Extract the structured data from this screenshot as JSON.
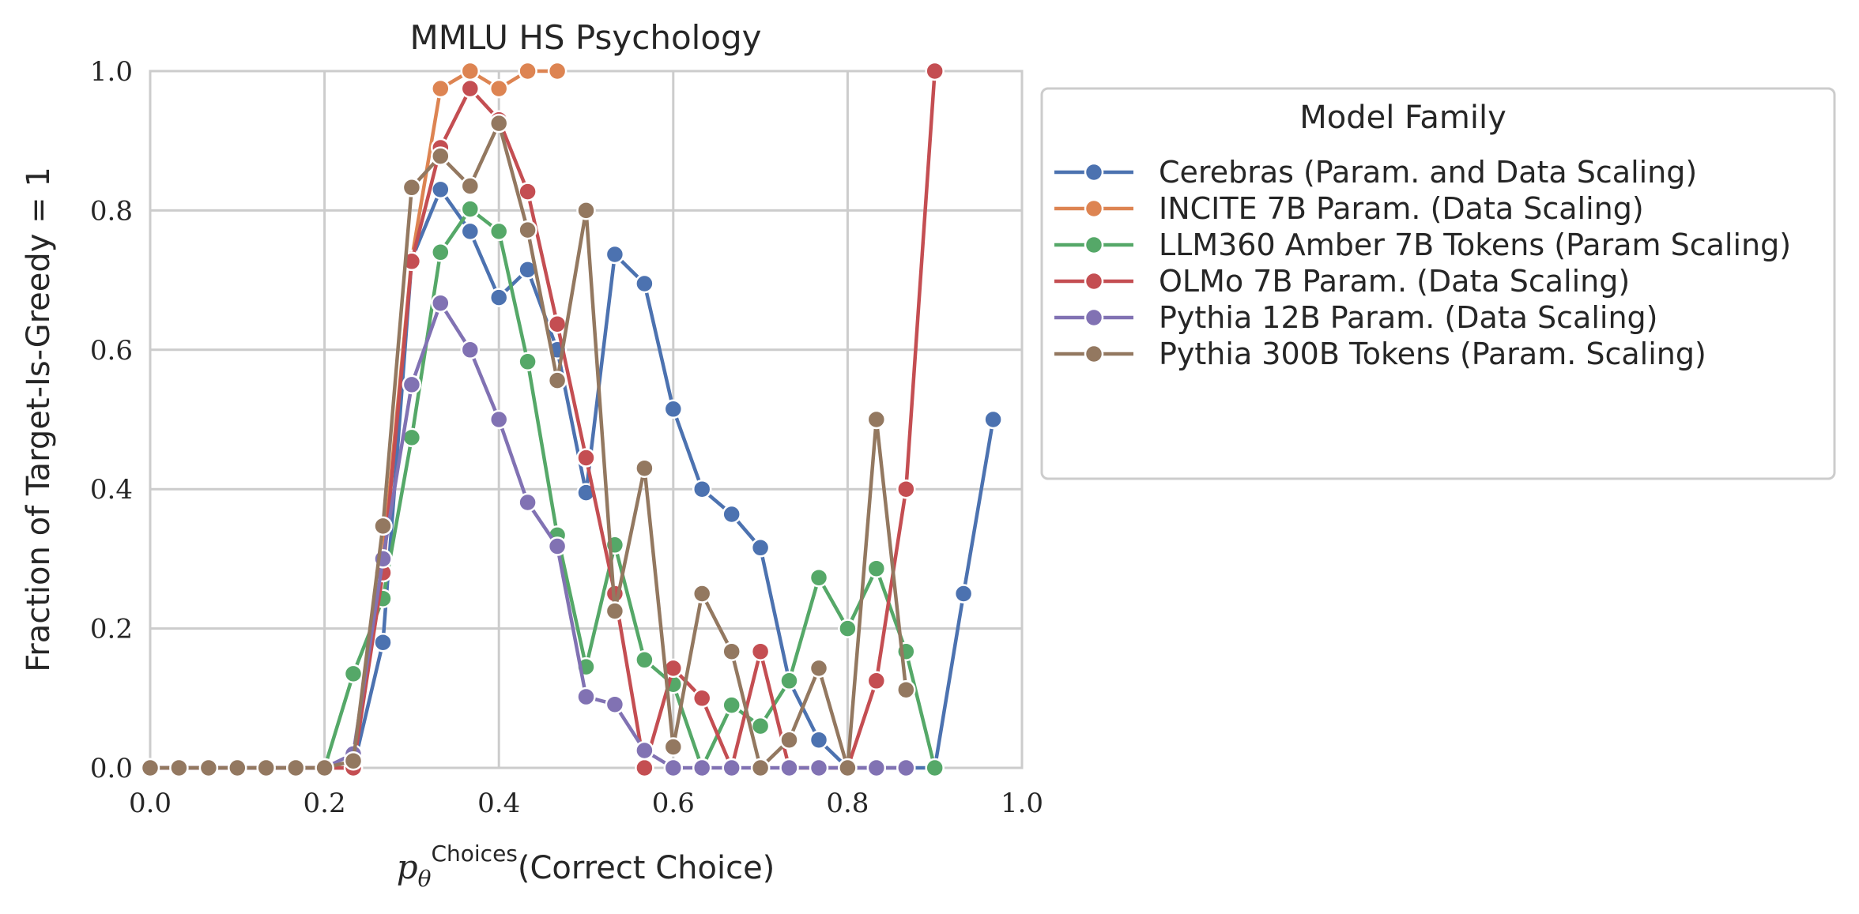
{
  "chart_data": {
    "type": "line",
    "title": "MMLU HS Psychology",
    "xlabel_sup": "Choices",
    "xlabel_main": "(Correct Choice)",
    "xlabel_symbol": "p",
    "xlabel_sub": "θ",
    "ylabel": "Fraction of Target-Is-Greedy = 1",
    "xlim": [
      0.0,
      1.0
    ],
    "ylim": [
      0.0,
      1.0
    ],
    "xticks": [
      "0.0",
      "0.2",
      "0.4",
      "0.6",
      "0.8",
      "1.0"
    ],
    "yticks": [
      "0.0",
      "0.2",
      "0.4",
      "0.6",
      "0.8",
      "1.0"
    ],
    "grid": true,
    "legend": {
      "title": "Model Family",
      "placement": "outside right"
    },
    "series": [
      {
        "name": "Cerebras (Param. and Data Scaling)",
        "color": "#4c72b0",
        "points": [
          [
            0.0,
            0.0
          ],
          [
            0.033,
            0.0
          ],
          [
            0.067,
            0.0
          ],
          [
            0.1,
            0.0
          ],
          [
            0.133,
            0.0
          ],
          [
            0.167,
            0.0
          ],
          [
            0.2,
            0.0
          ],
          [
            0.233,
            0.0
          ],
          [
            0.267,
            0.18
          ],
          [
            0.3,
            0.73
          ],
          [
            0.333,
            0.83
          ],
          [
            0.367,
            0.77
          ],
          [
            0.4,
            0.675
          ],
          [
            0.433,
            0.715
          ],
          [
            0.467,
            0.6
          ],
          [
            0.5,
            0.395
          ],
          [
            0.533,
            0.737
          ],
          [
            0.567,
            0.695
          ],
          [
            0.6,
            0.515
          ],
          [
            0.633,
            0.4
          ],
          [
            0.667,
            0.364
          ],
          [
            0.7,
            0.316
          ],
          [
            0.733,
            0.125
          ],
          [
            0.767,
            0.04
          ],
          [
            0.8,
            0.0
          ],
          [
            0.833,
            0.0
          ],
          [
            0.867,
            0.0
          ],
          [
            0.9,
            0.0
          ],
          [
            0.933,
            0.25
          ],
          [
            0.967,
            0.5
          ]
        ]
      },
      {
        "name": "INCITE 7B Param. (Data Scaling)",
        "color": "#dd8452",
        "points": [
          [
            0.0,
            0.0
          ],
          [
            0.033,
            0.0
          ],
          [
            0.067,
            0.0
          ],
          [
            0.1,
            0.0
          ],
          [
            0.133,
            0.0
          ],
          [
            0.167,
            0.0
          ],
          [
            0.2,
            0.0
          ],
          [
            0.233,
            0.0
          ],
          [
            0.267,
            0.3
          ],
          [
            0.3,
            0.73
          ],
          [
            0.333,
            0.975
          ],
          [
            0.367,
            1.0
          ],
          [
            0.4,
            0.975
          ],
          [
            0.433,
            1.0
          ],
          [
            0.467,
            1.0
          ]
        ]
      },
      {
        "name": "LLM360 Amber 7B Tokens (Param Scaling)",
        "color": "#55a868",
        "points": [
          [
            0.0,
            0.0
          ],
          [
            0.033,
            0.0
          ],
          [
            0.067,
            0.0
          ],
          [
            0.1,
            0.0
          ],
          [
            0.133,
            0.0
          ],
          [
            0.167,
            0.0
          ],
          [
            0.2,
            0.0
          ],
          [
            0.233,
            0.135
          ],
          [
            0.267,
            0.243
          ],
          [
            0.3,
            0.474
          ],
          [
            0.333,
            0.74
          ],
          [
            0.367,
            0.802
          ],
          [
            0.4,
            0.77
          ],
          [
            0.433,
            0.583
          ],
          [
            0.467,
            0.334
          ],
          [
            0.5,
            0.145
          ],
          [
            0.533,
            0.32
          ],
          [
            0.567,
            0.155
          ],
          [
            0.6,
            0.12
          ],
          [
            0.633,
            0.0
          ],
          [
            0.667,
            0.09
          ],
          [
            0.7,
            0.06
          ],
          [
            0.733,
            0.125
          ],
          [
            0.767,
            0.273
          ],
          [
            0.8,
            0.2
          ],
          [
            0.833,
            0.286
          ],
          [
            0.867,
            0.167
          ],
          [
            0.9,
            0.0
          ]
        ]
      },
      {
        "name": "OLMo 7B Param. (Data Scaling)",
        "color": "#c44e52",
        "points": [
          [
            0.0,
            0.0
          ],
          [
            0.033,
            0.0
          ],
          [
            0.067,
            0.0
          ],
          [
            0.1,
            0.0
          ],
          [
            0.133,
            0.0
          ],
          [
            0.167,
            0.0
          ],
          [
            0.2,
            0.0
          ],
          [
            0.233,
            0.0
          ],
          [
            0.267,
            0.28
          ],
          [
            0.3,
            0.727
          ],
          [
            0.333,
            0.89
          ],
          [
            0.367,
            0.975
          ],
          [
            0.4,
            0.93
          ],
          [
            0.433,
            0.827
          ],
          [
            0.467,
            0.637
          ],
          [
            0.5,
            0.445
          ],
          [
            0.533,
            0.25
          ],
          [
            0.567,
            0.0
          ],
          [
            0.6,
            0.143
          ],
          [
            0.633,
            0.1
          ],
          [
            0.667,
            0.0
          ],
          [
            0.7,
            0.167
          ],
          [
            0.733,
            0.0
          ],
          [
            0.767,
            0.0
          ],
          [
            0.8,
            0.0
          ],
          [
            0.833,
            0.125
          ],
          [
            0.867,
            0.4
          ],
          [
            0.9,
            1.0
          ]
        ]
      },
      {
        "name": "Pythia 12B Param. (Data Scaling)",
        "color": "#8172b3",
        "points": [
          [
            0.0,
            0.0
          ],
          [
            0.033,
            0.0
          ],
          [
            0.067,
            0.0
          ],
          [
            0.1,
            0.0
          ],
          [
            0.133,
            0.0
          ],
          [
            0.167,
            0.0
          ],
          [
            0.2,
            0.0
          ],
          [
            0.233,
            0.02
          ],
          [
            0.267,
            0.3
          ],
          [
            0.3,
            0.55
          ],
          [
            0.333,
            0.667
          ],
          [
            0.367,
            0.6
          ],
          [
            0.4,
            0.5
          ],
          [
            0.433,
            0.381
          ],
          [
            0.467,
            0.318
          ],
          [
            0.5,
            0.102
          ],
          [
            0.533,
            0.091
          ],
          [
            0.567,
            0.025
          ],
          [
            0.6,
            0.0
          ],
          [
            0.633,
            0.0
          ],
          [
            0.667,
            0.0
          ],
          [
            0.7,
            0.0
          ],
          [
            0.733,
            0.0
          ],
          [
            0.767,
            0.0
          ],
          [
            0.8,
            0.0
          ],
          [
            0.833,
            0.0
          ],
          [
            0.867,
            0.0
          ]
        ]
      },
      {
        "name": "Pythia 300B Tokens (Param. Scaling)",
        "color": "#937860",
        "points": [
          [
            0.0,
            0.0
          ],
          [
            0.033,
            0.0
          ],
          [
            0.067,
            0.0
          ],
          [
            0.1,
            0.0
          ],
          [
            0.133,
            0.0
          ],
          [
            0.167,
            0.0
          ],
          [
            0.2,
            0.0
          ],
          [
            0.233,
            0.01
          ],
          [
            0.267,
            0.347
          ],
          [
            0.3,
            0.833
          ],
          [
            0.333,
            0.878
          ],
          [
            0.367,
            0.835
          ],
          [
            0.4,
            0.925
          ],
          [
            0.433,
            0.772
          ],
          [
            0.467,
            0.556
          ],
          [
            0.5,
            0.8
          ],
          [
            0.533,
            0.225
          ],
          [
            0.567,
            0.43
          ],
          [
            0.6,
            0.03
          ],
          [
            0.633,
            0.25
          ],
          [
            0.667,
            0.167
          ],
          [
            0.7,
            0.0
          ],
          [
            0.733,
            0.04
          ],
          [
            0.767,
            0.143
          ],
          [
            0.8,
            0.0
          ],
          [
            0.833,
            0.5
          ],
          [
            0.867,
            0.112
          ]
        ]
      }
    ]
  }
}
